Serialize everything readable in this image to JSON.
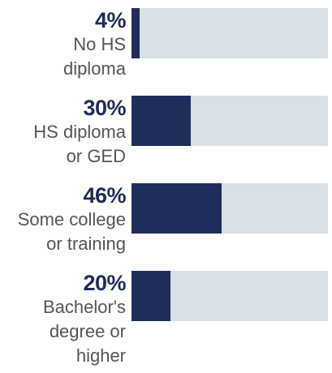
{
  "chart_data": {
    "type": "bar",
    "orientation": "horizontal",
    "categories": [
      "No HS\ndiploma",
      "HS diploma\nor GED",
      "Some college\nor training",
      "Bachelor's\ndegree or\nhigher"
    ],
    "values": [
      4,
      30,
      46,
      20
    ],
    "value_labels": [
      "4%",
      "30%",
      "46%",
      "20%"
    ],
    "xlim": [
      0,
      100
    ],
    "grid": false,
    "colors": {
      "bar": "#1f2d5a",
      "track": "#d9e0e6",
      "value_text": "#1f2d5a",
      "label_text": "#555555"
    }
  }
}
